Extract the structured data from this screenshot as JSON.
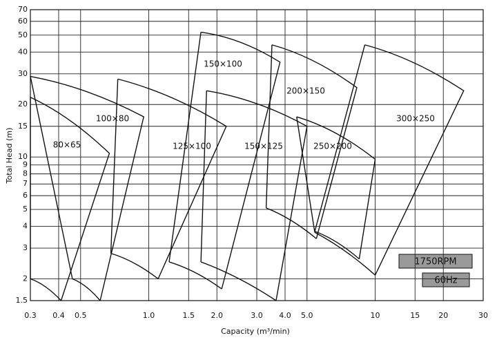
{
  "chart_data": {
    "type": "pump-coverage",
    "x_label": "Capacity (m³/min)",
    "y_label": "Total Head (m)",
    "log_x": true,
    "log_y": true,
    "grid": true,
    "xlim": [
      0.3,
      30
    ],
    "ylim": [
      1.5,
      70
    ],
    "xticks": [
      0.3,
      0.4,
      0.5,
      {
        "value": 1,
        "label": "1.0"
      },
      1.5,
      {
        "value": 2,
        "label": "2.0"
      },
      {
        "value": 3,
        "label": "3.0"
      },
      {
        "value": 4,
        "label": "4.0"
      },
      {
        "value": 5,
        "label": "5.0"
      },
      10,
      15,
      20,
      30
    ],
    "yticks": [
      1.5,
      2,
      3,
      4,
      5,
      6,
      7,
      8,
      9,
      10,
      15,
      20,
      30,
      40,
      50,
      60,
      70
    ],
    "annotations": [
      "1750RPM",
      "60Hz"
    ],
    "regions": [
      {
        "name": "80×65",
        "x": [
          0.3,
          0.67,
          0.41,
          0.3
        ],
        "y": [
          22,
          10.5,
          1.5,
          2.0
        ]
      },
      {
        "name": "100×80",
        "x": [
          0.3,
          0.95,
          0.61,
          0.46
        ],
        "y": [
          29,
          17,
          1.5,
          2.0
        ]
      },
      {
        "name": "125×100",
        "x": [
          0.73,
          2.2,
          1.1,
          0.68
        ],
        "y": [
          28,
          15,
          2.0,
          2.8
        ]
      },
      {
        "name": "150×100",
        "x": [
          1.7,
          3.8,
          2.1,
          1.23
        ],
        "y": [
          52,
          35,
          1.75,
          2.5
        ]
      },
      {
        "name": "150×125",
        "x": [
          1.8,
          5.0,
          3.65,
          1.7
        ],
        "y": [
          24,
          15,
          1.5,
          2.5
        ]
      },
      {
        "name": "200×150",
        "x": [
          3.5,
          8.3,
          5.5,
          3.3
        ],
        "y": [
          44,
          25,
          3.4,
          5.1
        ]
      },
      {
        "name": "250×200",
        "x": [
          4.5,
          10,
          8.5,
          5.4
        ],
        "y": [
          17,
          9.7,
          2.6,
          3.75
        ]
      },
      {
        "name": "300×250",
        "x": [
          9.0,
          24.6,
          10,
          5.4
        ],
        "y": [
          44,
          24,
          2.1,
          3.7
        ]
      }
    ]
  }
}
